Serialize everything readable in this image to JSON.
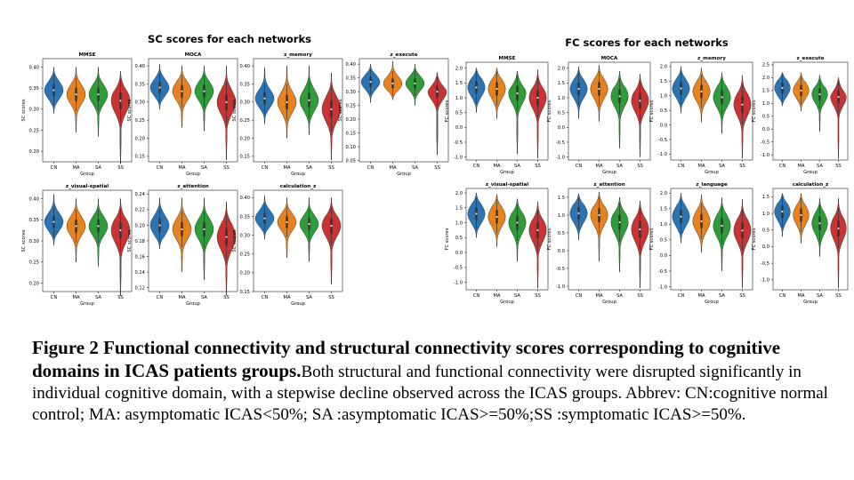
{
  "groups": [
    "CN",
    "MA",
    "SA",
    "SS"
  ],
  "colors": {
    "CN": "#2a74b4",
    "MA": "#e8821e",
    "SA": "#2f9c3a",
    "SS": "#c93333"
  },
  "x_label": "Group",
  "sc": {
    "heading": "SC scores for each networks",
    "y_label": "SC scores",
    "panels": [
      {
        "title": "MMSE",
        "ticks": [
          0.2,
          0.25,
          0.3,
          0.35,
          0.4
        ],
        "ylim": [
          0.175,
          0.42
        ],
        "violins": [
          {
            "center": 0.345,
            "min": 0.29,
            "max": 0.4,
            "spread": 0.02
          },
          {
            "center": 0.335,
            "min": 0.245,
            "max": 0.4,
            "spread": 0.022
          },
          {
            "center": 0.335,
            "min": 0.235,
            "max": 0.4,
            "spread": 0.022
          },
          {
            "center": 0.32,
            "min": 0.17,
            "max": 0.39,
            "spread": 0.028
          }
        ]
      },
      {
        "title": "MOCA",
        "ticks": [
          0.15,
          0.2,
          0.25,
          0.3,
          0.35,
          0.4
        ],
        "ylim": [
          0.135,
          0.42
        ],
        "violins": [
          {
            "center": 0.34,
            "min": 0.28,
            "max": 0.405,
            "spread": 0.022
          },
          {
            "center": 0.33,
            "min": 0.23,
            "max": 0.4,
            "spread": 0.025
          },
          {
            "center": 0.33,
            "min": 0.22,
            "max": 0.4,
            "spread": 0.025
          },
          {
            "center": 0.3,
            "min": 0.14,
            "max": 0.4,
            "spread": 0.032
          }
        ]
      },
      {
        "title": "z_memory",
        "ticks": [
          0.15,
          0.2,
          0.25,
          0.3,
          0.35,
          0.4
        ],
        "ylim": [
          0.135,
          0.42
        ],
        "violins": [
          {
            "center": 0.31,
            "min": 0.24,
            "max": 0.395,
            "spread": 0.024
          },
          {
            "center": 0.3,
            "min": 0.2,
            "max": 0.4,
            "spread": 0.028
          },
          {
            "center": 0.305,
            "min": 0.21,
            "max": 0.4,
            "spread": 0.028
          },
          {
            "center": 0.28,
            "min": 0.14,
            "max": 0.38,
            "spread": 0.033
          }
        ]
      },
      {
        "title": "z_execute",
        "ticks": [
          0.05,
          0.1,
          0.15,
          0.2,
          0.25,
          0.3,
          0.35,
          0.4
        ],
        "ylim": [
          0.045,
          0.42
        ],
        "violins": [
          {
            "center": 0.335,
            "min": 0.26,
            "max": 0.4,
            "spread": 0.025
          },
          {
            "center": 0.33,
            "min": 0.27,
            "max": 0.41,
            "spread": 0.025
          },
          {
            "center": 0.33,
            "min": 0.25,
            "max": 0.4,
            "spread": 0.025
          },
          {
            "center": 0.3,
            "min": 0.07,
            "max": 0.37,
            "spread": 0.03
          }
        ]
      },
      {
        "title": "z_visual-spatial",
        "ticks": [
          0.2,
          0.25,
          0.3,
          0.35,
          0.4
        ],
        "ylim": [
          0.18,
          0.42
        ],
        "violins": [
          {
            "center": 0.345,
            "min": 0.29,
            "max": 0.41,
            "spread": 0.02
          },
          {
            "center": 0.335,
            "min": 0.25,
            "max": 0.4,
            "spread": 0.022
          },
          {
            "center": 0.335,
            "min": 0.24,
            "max": 0.4,
            "spread": 0.022
          },
          {
            "center": 0.325,
            "min": 0.17,
            "max": 0.4,
            "spread": 0.028
          }
        ]
      },
      {
        "title": "z_attention",
        "ticks": [
          0.12,
          0.14,
          0.16,
          0.18,
          0.2,
          0.22,
          0.24
        ],
        "ylim": [
          0.115,
          0.245
        ],
        "violins": [
          {
            "center": 0.2,
            "min": 0.17,
            "max": 0.235,
            "spread": 0.012
          },
          {
            "center": 0.195,
            "min": 0.14,
            "max": 0.235,
            "spread": 0.013
          },
          {
            "center": 0.195,
            "min": 0.13,
            "max": 0.235,
            "spread": 0.013
          },
          {
            "center": 0.185,
            "min": 0.11,
            "max": 0.23,
            "spread": 0.016
          }
        ]
      },
      {
        "title": "calculation_z",
        "ticks": [
          0.15,
          0.2,
          0.25,
          0.3,
          0.35,
          0.4
        ],
        "ylim": [
          0.15,
          0.42
        ],
        "violins": [
          {
            "center": 0.345,
            "min": 0.29,
            "max": 0.405,
            "spread": 0.02
          },
          {
            "center": 0.335,
            "min": 0.24,
            "max": 0.4,
            "spread": 0.022
          },
          {
            "center": 0.33,
            "min": 0.23,
            "max": 0.4,
            "spread": 0.022
          },
          {
            "center": 0.325,
            "min": 0.17,
            "max": 0.4,
            "spread": 0.028
          }
        ]
      }
    ]
  },
  "fc": {
    "heading": "FC scores for each networks",
    "y_label": "FC scores",
    "panels": [
      {
        "title": "MMSE",
        "ticks": [
          -1.0,
          -0.5,
          0.0,
          0.5,
          1.0,
          1.5,
          2.0
        ],
        "ylim": [
          -1.1,
          2.2
        ],
        "violins": [
          {
            "center": 1.35,
            "min": 0.5,
            "max": 2.0,
            "spread": 0.3
          },
          {
            "center": 1.3,
            "min": 0.3,
            "max": 2.0,
            "spread": 0.32
          },
          {
            "center": 1.15,
            "min": -0.9,
            "max": 1.9,
            "spread": 0.34
          },
          {
            "center": 1.0,
            "min": -1.05,
            "max": 1.95,
            "spread": 0.36
          }
        ]
      },
      {
        "title": "MOCA",
        "ticks": [
          -1.0,
          -0.5,
          0.0,
          0.5,
          1.0,
          1.5,
          2.0
        ],
        "ylim": [
          -1.1,
          2.2
        ],
        "violins": [
          {
            "center": 1.3,
            "min": 0.3,
            "max": 2.05,
            "spread": 0.3
          },
          {
            "center": 1.3,
            "min": 0.2,
            "max": 2.1,
            "spread": 0.32
          },
          {
            "center": 1.05,
            "min": -0.7,
            "max": 1.9,
            "spread": 0.34
          },
          {
            "center": 0.9,
            "min": -1.0,
            "max": 1.8,
            "spread": 0.36
          }
        ]
      },
      {
        "title": "z_memory",
        "ticks": [
          -1.0,
          -0.5,
          0.0,
          0.5,
          1.0,
          1.5,
          2.0
        ],
        "ylim": [
          -1.2,
          2.15
        ],
        "violins": [
          {
            "center": 1.25,
            "min": 0.4,
            "max": 2.0,
            "spread": 0.3
          },
          {
            "center": 1.15,
            "min": 0.1,
            "max": 1.95,
            "spread": 0.32
          },
          {
            "center": 0.95,
            "min": -0.3,
            "max": 1.8,
            "spread": 0.34
          },
          {
            "center": 0.7,
            "min": -1.15,
            "max": 1.7,
            "spread": 0.38
          }
        ]
      },
      {
        "title": "z_execute",
        "ticks": [
          -1.0,
          -0.5,
          0.0,
          0.5,
          1.0,
          1.5,
          2.0,
          2.5
        ],
        "ylim": [
          -1.2,
          2.6
        ],
        "violins": [
          {
            "center": 1.6,
            "min": 0.9,
            "max": 2.2,
            "spread": 0.3
          },
          {
            "center": 1.5,
            "min": 0.7,
            "max": 2.2,
            "spread": 0.3
          },
          {
            "center": 1.35,
            "min": -0.1,
            "max": 2.1,
            "spread": 0.32
          },
          {
            "center": 1.25,
            "min": -1.15,
            "max": 2.0,
            "spread": 0.35
          }
        ]
      },
      {
        "title": "z_visual-spatial",
        "ticks": [
          -1.0,
          -0.5,
          0.0,
          0.5,
          1.0,
          1.5,
          2.0
        ],
        "ylim": [
          -1.25,
          2.15
        ],
        "violins": [
          {
            "center": 1.3,
            "min": 0.5,
            "max": 2.0,
            "spread": 0.3
          },
          {
            "center": 1.2,
            "min": 0.2,
            "max": 1.95,
            "spread": 0.32
          },
          {
            "center": 1.0,
            "min": -0.3,
            "max": 1.8,
            "spread": 0.34
          },
          {
            "center": 0.75,
            "min": -1.2,
            "max": 1.7,
            "spread": 0.38
          }
        ]
      },
      {
        "title": "z_attention",
        "ticks": [
          -1.0,
          -0.5,
          0.0,
          0.5,
          1.0,
          1.5
        ],
        "ylim": [
          -1.1,
          1.75
        ],
        "violins": [
          {
            "center": 1.05,
            "min": 0.3,
            "max": 1.6,
            "spread": 0.25
          },
          {
            "center": 1.0,
            "min": -0.3,
            "max": 1.65,
            "spread": 0.28
          },
          {
            "center": 0.8,
            "min": -0.6,
            "max": 1.5,
            "spread": 0.3
          },
          {
            "center": 0.6,
            "min": -1.05,
            "max": 1.4,
            "spread": 0.33
          }
        ]
      },
      {
        "title": "z_language",
        "ticks": [
          -1.0,
          -0.5,
          0.0,
          0.5,
          1.0,
          1.5,
          2.0
        ],
        "ylim": [
          -1.1,
          2.15
        ],
        "violins": [
          {
            "center": 1.25,
            "min": 0.4,
            "max": 2.0,
            "spread": 0.3
          },
          {
            "center": 1.1,
            "min": 0.1,
            "max": 1.95,
            "spread": 0.32
          },
          {
            "center": 0.95,
            "min": -0.5,
            "max": 1.85,
            "spread": 0.34
          },
          {
            "center": 0.8,
            "min": -1.05,
            "max": 1.8,
            "spread": 0.36
          }
        ]
      },
      {
        "title": "calculation_z",
        "ticks": [
          -1.0,
          -0.5,
          0.0,
          0.5,
          1.0,
          1.5
        ],
        "ylim": [
          -1.3,
          1.75
        ],
        "violins": [
          {
            "center": 1.05,
            "min": 0.3,
            "max": 1.6,
            "spread": 0.26
          },
          {
            "center": 0.95,
            "min": 0.1,
            "max": 1.6,
            "spread": 0.28
          },
          {
            "center": 0.7,
            "min": -0.3,
            "max": 1.45,
            "spread": 0.3
          },
          {
            "center": 0.55,
            "min": -1.25,
            "max": 1.45,
            "spread": 0.34
          }
        ]
      }
    ]
  },
  "caption": {
    "bold": "Figure 2 Functional connectivity and structural connectivity scores corresponding to cognitive domains in ICAS patients groups.",
    "text": "Both structural and functional connectivity were disrupted significantly in individual cognitive domain, with a stepwise decline observed across the ICAS groups. Abbrev: CN:cognitive normal control; MA: asymptomatic ICAS<50%; SA :asymptomatic ICAS>=50%;SS :symptomatic ICAS>=50%."
  },
  "chart_data": [
    {
      "type": "violin",
      "title": "SC scores for each networks",
      "categories": [
        "CN",
        "MA",
        "SA",
        "SS"
      ],
      "xlabel": "Group",
      "ylabel": "SC scores",
      "panels": [
        "MMSE",
        "MOCA",
        "z_memory",
        "z_execute",
        "z_visual-spatial",
        "z_attention",
        "calculation_z"
      ],
      "medians": {
        "MMSE": [
          0.345,
          0.335,
          0.335,
          0.32
        ],
        "MOCA": [
          0.34,
          0.33,
          0.33,
          0.3
        ],
        "z_memory": [
          0.31,
          0.3,
          0.305,
          0.28
        ],
        "z_execute": [
          0.335,
          0.33,
          0.33,
          0.3
        ],
        "z_visual-spatial": [
          0.345,
          0.335,
          0.335,
          0.325
        ],
        "z_attention": [
          0.2,
          0.195,
          0.195,
          0.185
        ],
        "calculation_z": [
          0.345,
          0.335,
          0.33,
          0.325
        ]
      }
    },
    {
      "type": "violin",
      "title": "FC scores for each networks",
      "categories": [
        "CN",
        "MA",
        "SA",
        "SS"
      ],
      "xlabel": "Group",
      "ylabel": "FC scores",
      "panels": [
        "MMSE",
        "MOCA",
        "z_memory",
        "z_execute",
        "z_visual-spatial",
        "z_attention",
        "z_language",
        "calculation_z"
      ],
      "medians": {
        "MMSE": [
          1.35,
          1.3,
          1.15,
          1.0
        ],
        "MOCA": [
          1.3,
          1.3,
          1.05,
          0.9
        ],
        "z_memory": [
          1.25,
          1.15,
          0.95,
          0.7
        ],
        "z_execute": [
          1.6,
          1.5,
          1.35,
          1.25
        ],
        "z_visual-spatial": [
          1.3,
          1.2,
          1.0,
          0.75
        ],
        "z_attention": [
          1.05,
          1.0,
          0.8,
          0.6
        ],
        "z_language": [
          1.25,
          1.1,
          0.95,
          0.8
        ],
        "calculation_z": [
          1.05,
          0.95,
          0.7,
          0.55
        ]
      }
    }
  ]
}
